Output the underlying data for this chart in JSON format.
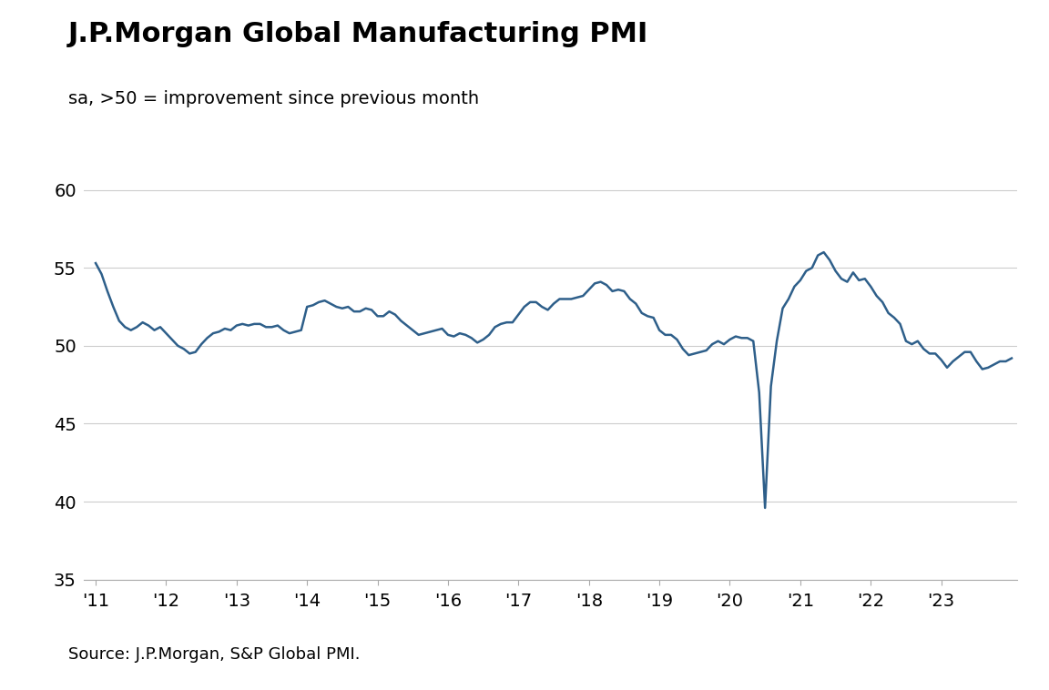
{
  "title": "J.P.Morgan Global Manufacturing PMI",
  "subtitle": "sa, >50 = improvement since previous month",
  "source": "Source: J.P.Morgan, S&P Global PMI.",
  "line_color": "#2E5F8A",
  "background_color": "#ffffff",
  "grid_color": "#cccccc",
  "ylim": [
    35,
    62
  ],
  "yticks": [
    35,
    40,
    45,
    50,
    55,
    60
  ],
  "title_fontsize": 22,
  "subtitle_fontsize": 14,
  "source_fontsize": 13,
  "tick_fontsize": 14,
  "line_width": 1.8,
  "xtick_labels": [
    "'11",
    "'12",
    "'13",
    "'14",
    "'15",
    "'16",
    "'17",
    "'18",
    "'19",
    "'20",
    "'21",
    "'22",
    "'23"
  ],
  "pmi_data": [
    55.3,
    54.6,
    53.5,
    52.5,
    51.6,
    51.2,
    51.0,
    51.2,
    51.5,
    51.3,
    51.0,
    51.2,
    50.8,
    50.4,
    50.0,
    49.8,
    49.5,
    49.6,
    50.1,
    50.5,
    50.8,
    50.9,
    51.1,
    51.0,
    51.3,
    51.4,
    51.3,
    51.4,
    51.4,
    51.2,
    51.2,
    51.3,
    51.0,
    50.8,
    50.9,
    51.0,
    52.5,
    52.6,
    52.8,
    52.9,
    52.7,
    52.5,
    52.4,
    52.5,
    52.2,
    52.2,
    52.4,
    52.3,
    51.9,
    51.9,
    52.2,
    52.0,
    51.6,
    51.3,
    51.0,
    50.7,
    50.8,
    50.9,
    51.0,
    51.1,
    50.7,
    50.6,
    50.8,
    50.7,
    50.5,
    50.2,
    50.4,
    50.7,
    51.2,
    51.4,
    51.5,
    51.5,
    52.0,
    52.5,
    52.8,
    52.8,
    52.5,
    52.3,
    52.7,
    53.0,
    53.0,
    53.0,
    53.1,
    53.2,
    53.6,
    54.0,
    54.1,
    53.9,
    53.5,
    53.6,
    53.5,
    53.0,
    52.7,
    52.1,
    51.9,
    51.8,
    51.0,
    50.7,
    50.7,
    50.4,
    49.8,
    49.4,
    49.5,
    49.6,
    49.7,
    50.1,
    50.3,
    50.1,
    50.4,
    50.6,
    50.5,
    50.5,
    50.3,
    47.0,
    39.6,
    47.4,
    50.3,
    52.4,
    53.0,
    53.8,
    54.2,
    54.8,
    55.0,
    55.8,
    56.0,
    55.5,
    54.8,
    54.3,
    54.1,
    54.7,
    54.2,
    54.3,
    53.8,
    53.2,
    52.8,
    52.1,
    51.8,
    51.4,
    50.3,
    50.1,
    50.3,
    49.8,
    49.5,
    49.5,
    49.1,
    48.6,
    49.0,
    49.3,
    49.6,
    49.6,
    49.0,
    48.5,
    48.6,
    48.8,
    49.0,
    49.0,
    49.2
  ]
}
